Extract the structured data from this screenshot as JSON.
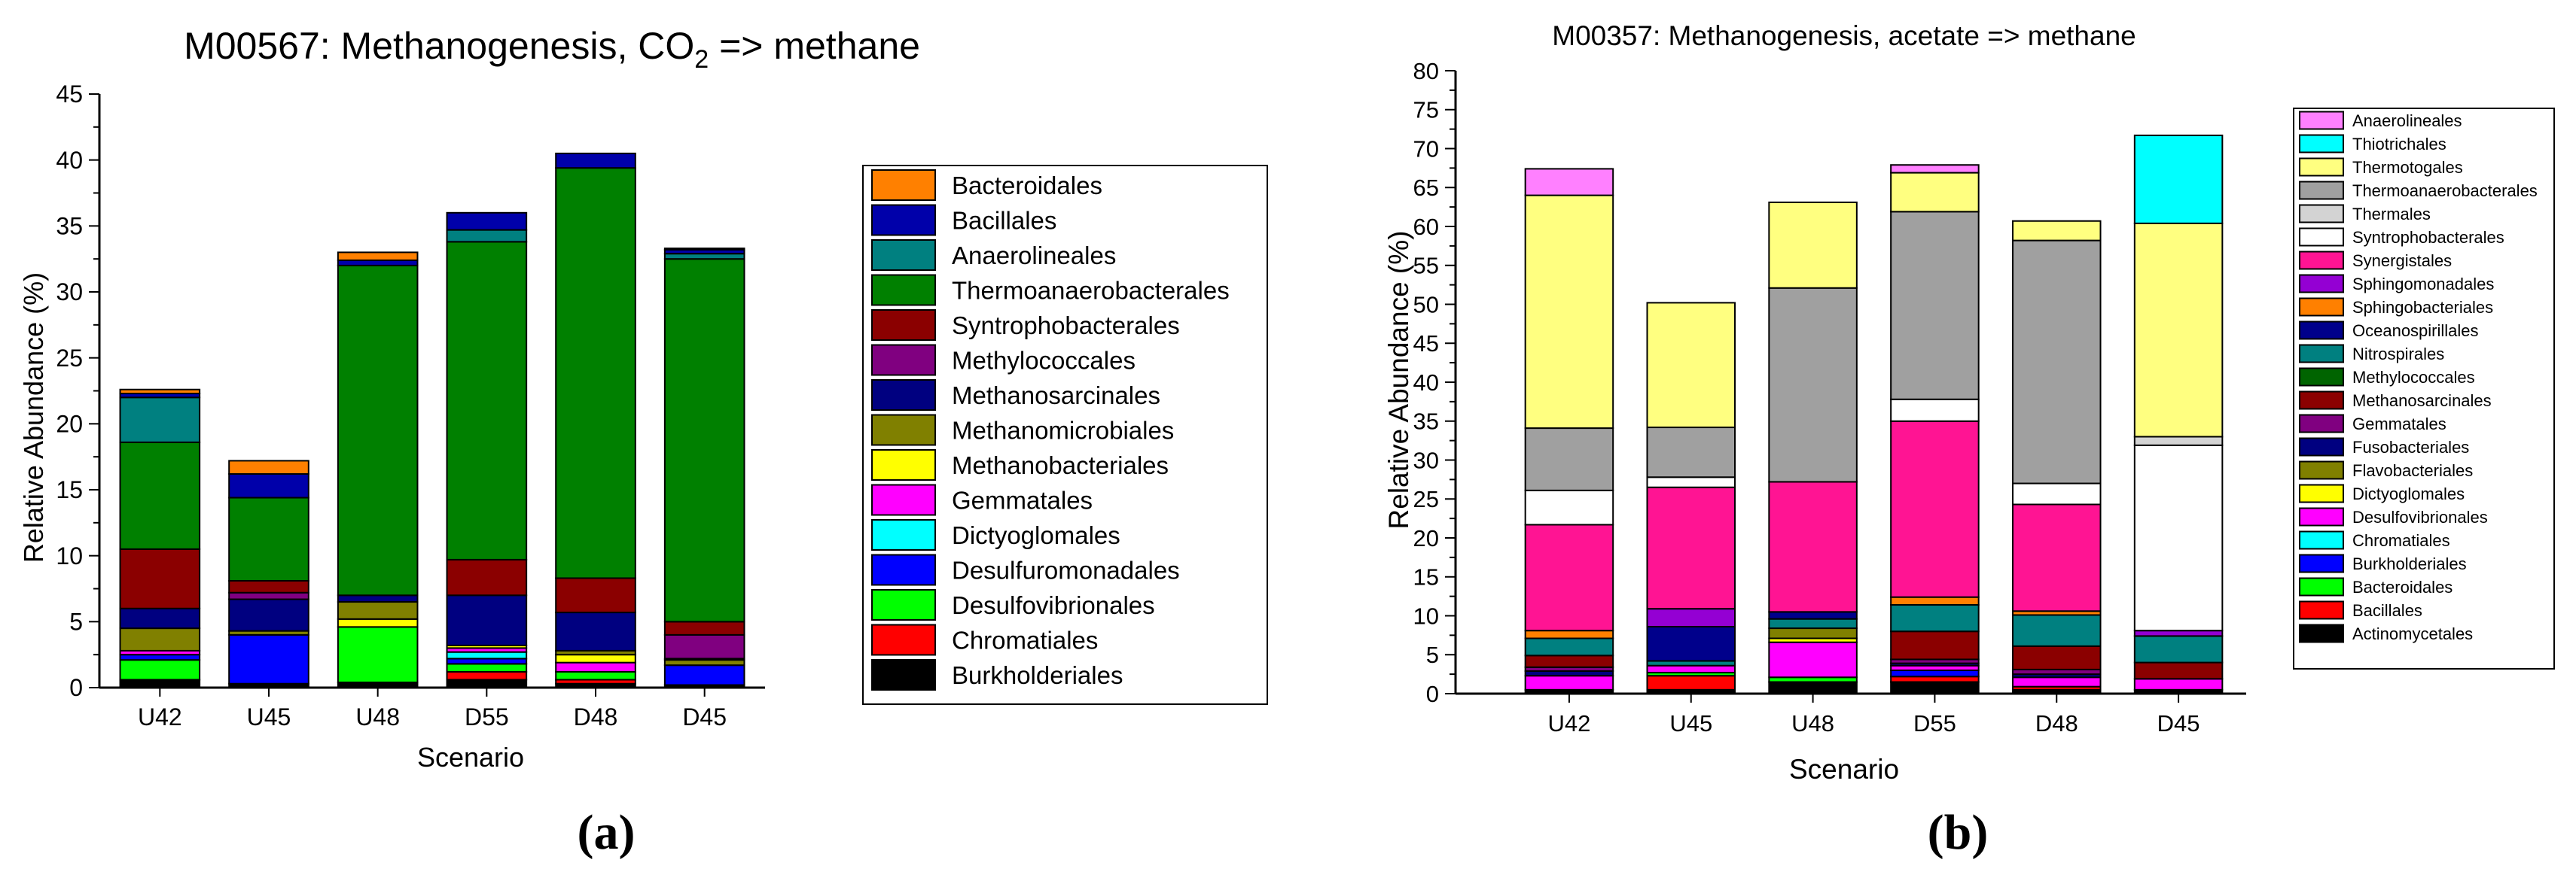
{
  "panel_labels": [
    "(a)",
    "(b)"
  ],
  "chart_data": [
    {
      "type": "bar",
      "stacked": true,
      "title": "M00567: Methanogenesis, CO₂ => methane",
      "title_parts": [
        "M00567: Methanogenesis, CO",
        "2",
        " => methane"
      ],
      "xlabel": "Scenario",
      "ylabel": "Relative Abundance (%)",
      "ylim": [
        0,
        45
      ],
      "yticks": [
        0,
        5,
        10,
        15,
        20,
        25,
        30,
        35,
        40,
        45
      ],
      "categories": [
        "U42",
        "U45",
        "U48",
        "D55",
        "D48",
        "D45"
      ],
      "grid": false,
      "legend_position": "right",
      "legend_order": [
        "Bacteroidales",
        "Bacillales",
        "Anaerolineales",
        "Thermoanaerobacterales",
        "Syntrophobacterales",
        "Methylococcales",
        "Methanosarcinales",
        "Methanomicrobiales",
        "Methanobacteriales",
        "Gemmatales",
        "Dictyoglomales",
        "Desulfuromonadales",
        "Desulfovibrionales",
        "Chromatiales",
        "Burkholderiales"
      ],
      "series": [
        {
          "name": "Burkholderiales",
          "color": "#000000",
          "values": [
            0.6,
            0.3,
            0.4,
            0.6,
            0.3,
            0.2
          ]
        },
        {
          "name": "Chromatiales",
          "color": "#ff0000",
          "values": [
            0.0,
            0.0,
            0.0,
            0.6,
            0.3,
            0.0
          ]
        },
        {
          "name": "Desulfovibrionales",
          "color": "#00ff00",
          "values": [
            1.5,
            0.0,
            4.2,
            0.6,
            0.6,
            0.0
          ]
        },
        {
          "name": "Desulfuromonadales",
          "color": "#0000ff",
          "values": [
            0.4,
            3.7,
            0.0,
            0.4,
            0.0,
            1.5
          ]
        },
        {
          "name": "Dictyoglomales",
          "color": "#00ffff",
          "values": [
            0.0,
            0.0,
            0.0,
            0.5,
            0.0,
            0.0
          ]
        },
        {
          "name": "Gemmatales",
          "color": "#ff00ff",
          "values": [
            0.3,
            0.0,
            0.0,
            0.3,
            0.7,
            0.0
          ]
        },
        {
          "name": "Methanobacteriales",
          "color": "#ffff00",
          "values": [
            0.0,
            0.0,
            0.6,
            0.2,
            0.6,
            0.0
          ]
        },
        {
          "name": "Methanomicrobiales",
          "color": "#808000",
          "values": [
            1.7,
            0.3,
            1.3,
            0.0,
            0.3,
            0.4
          ]
        },
        {
          "name": "Methanosarcinales",
          "color": "#000080",
          "values": [
            1.5,
            2.4,
            0.5,
            3.8,
            2.9,
            0.1
          ]
        },
        {
          "name": "Methylococcales",
          "color": "#800080",
          "values": [
            0.0,
            0.5,
            0.0,
            0.0,
            0.0,
            1.8
          ]
        },
        {
          "name": "Syntrophobacterales",
          "color": "#8b0000",
          "values": [
            4.5,
            0.9,
            0.0,
            2.7,
            2.6,
            1.0
          ]
        },
        {
          "name": "Thermoanaerobacterales",
          "color": "#008000",
          "values": [
            8.1,
            6.3,
            25.0,
            24.1,
            31.1,
            27.5
          ]
        },
        {
          "name": "Anaerolineales",
          "color": "#008080",
          "values": [
            3.4,
            0.0,
            0.0,
            0.9,
            0.0,
            0.4
          ]
        },
        {
          "name": "Bacillales",
          "color": "#0000aa",
          "values": [
            0.3,
            1.8,
            0.4,
            1.3,
            1.1,
            0.3
          ]
        },
        {
          "name": "Bacteroidales",
          "color": "#ff8000",
          "values": [
            0.3,
            1.0,
            0.6,
            0.0,
            0.0,
            0.1
          ]
        }
      ]
    },
    {
      "type": "bar",
      "stacked": true,
      "title": "M00357: Methanogenesis, acetate => methane",
      "xlabel": "Scenario",
      "ylabel": "Relative Abundance (%)",
      "ylim": [
        0,
        80
      ],
      "yticks": [
        0,
        5,
        10,
        15,
        20,
        25,
        30,
        35,
        40,
        45,
        50,
        55,
        60,
        65,
        70,
        75,
        80
      ],
      "categories": [
        "U42",
        "U45",
        "U48",
        "D55",
        "D48",
        "D45"
      ],
      "grid": false,
      "legend_position": "right",
      "legend_order": [
        "Anaerolineales",
        "Thiotrichales",
        "Thermotogales",
        "Thermoanaerobacterales",
        "Thermales",
        "Syntrophobacterales",
        "Synergistales",
        "Sphingomonadales",
        "Sphingobacteriales",
        "Oceanospirillales",
        "Nitrospirales",
        "Methylococcales",
        "Methanosarcinales",
        "Gemmatales",
        "Fusobacteriales",
        "Flavobacteriales",
        "Dictyoglomales",
        "Desulfovibrionales",
        "Chromatiales",
        "Burkholderiales",
        "Bacteroidales",
        "Bacillales",
        "Actinomycetales"
      ],
      "series": [
        {
          "name": "Actinomycetales",
          "color": "#000000",
          "values": [
            0.5,
            0.5,
            1.5,
            1.5,
            0.5,
            0.5
          ]
        },
        {
          "name": "Bacillales",
          "color": "#ff0000",
          "values": [
            0.0,
            1.8,
            0.0,
            0.7,
            0.4,
            0.0
          ]
        },
        {
          "name": "Bacteroidales",
          "color": "#00ff00",
          "values": [
            0.0,
            0.4,
            0.6,
            0.0,
            0.0,
            0.0
          ]
        },
        {
          "name": "Burkholderiales",
          "color": "#0000ff",
          "values": [
            0.0,
            0.0,
            0.0,
            0.8,
            0.0,
            0.0
          ]
        },
        {
          "name": "Chromatiales",
          "color": "#00ffff",
          "values": [
            0.0,
            0.0,
            0.0,
            0.0,
            0.0,
            0.0
          ]
        },
        {
          "name": "Desulfovibrionales",
          "color": "#ff00ff",
          "values": [
            1.8,
            0.9,
            4.5,
            0.6,
            1.2,
            1.4
          ]
        },
        {
          "name": "Dictyoglomales",
          "color": "#ffff00",
          "values": [
            0.0,
            0.0,
            0.5,
            0.0,
            0.0,
            0.0
          ]
        },
        {
          "name": "Flavobacteriales",
          "color": "#808000",
          "values": [
            0.0,
            0.0,
            1.3,
            0.0,
            0.0,
            0.0
          ]
        },
        {
          "name": "Fusobacteriales",
          "color": "#000080",
          "values": [
            0.6,
            0.0,
            0.0,
            0.3,
            0.4,
            0.0
          ]
        },
        {
          "name": "Gemmatales",
          "color": "#800080",
          "values": [
            0.5,
            0.0,
            0.0,
            0.5,
            0.6,
            0.0
          ]
        },
        {
          "name": "Methanosarcinales",
          "color": "#8b0000",
          "values": [
            1.5,
            0.0,
            0.0,
            3.6,
            3.0,
            2.1
          ]
        },
        {
          "name": "Methylococcales",
          "color": "#006400",
          "values": [
            0.0,
            0.0,
            0.0,
            0.0,
            0.0,
            0.0
          ]
        },
        {
          "name": "Nitrospirales",
          "color": "#008080",
          "values": [
            2.2,
            0.6,
            1.2,
            3.4,
            4.0,
            3.4
          ]
        },
        {
          "name": "Oceanospirillales",
          "color": "#00008b",
          "values": [
            0.0,
            4.4,
            0.9,
            0.0,
            0.0,
            0.0
          ]
        },
        {
          "name": "Sphingobacteriales",
          "color": "#ff8000",
          "values": [
            1.0,
            0.0,
            0.0,
            1.0,
            0.5,
            0.0
          ]
        },
        {
          "name": "Sphingomonadales",
          "color": "#9400d3",
          "values": [
            0.0,
            2.3,
            0.0,
            0.0,
            0.0,
            0.7
          ]
        },
        {
          "name": "Synergistales",
          "color": "#ff1493",
          "values": [
            13.6,
            15.6,
            16.7,
            22.6,
            13.7,
            0.0
          ]
        },
        {
          "name": "Syntrophobacterales",
          "color": "#ffffff",
          "values": [
            4.4,
            1.3,
            0.0,
            2.8,
            2.7,
            23.8
          ]
        },
        {
          "name": "Thermales",
          "color": "#d3d3d3",
          "values": [
            0.0,
            0.0,
            0.0,
            0.0,
            0.0,
            1.1
          ]
        },
        {
          "name": "Thermoanaerobacterales",
          "color": "#a0a0a0",
          "values": [
            8.0,
            6.4,
            24.9,
            24.1,
            31.2,
            0.0
          ]
        },
        {
          "name": "Thermotogales",
          "color": "#ffff80",
          "values": [
            29.9,
            16.0,
            11.0,
            5.0,
            2.5,
            27.4
          ]
        },
        {
          "name": "Thiotrichales",
          "color": "#00ffff",
          "values": [
            0.0,
            0.0,
            0.0,
            0.0,
            0.0,
            11.3
          ]
        },
        {
          "name": "Anaerolineales",
          "color": "#ff80ff",
          "values": [
            3.4,
            0.0,
            0.0,
            1.0,
            0.0,
            0.0
          ]
        }
      ]
    }
  ]
}
